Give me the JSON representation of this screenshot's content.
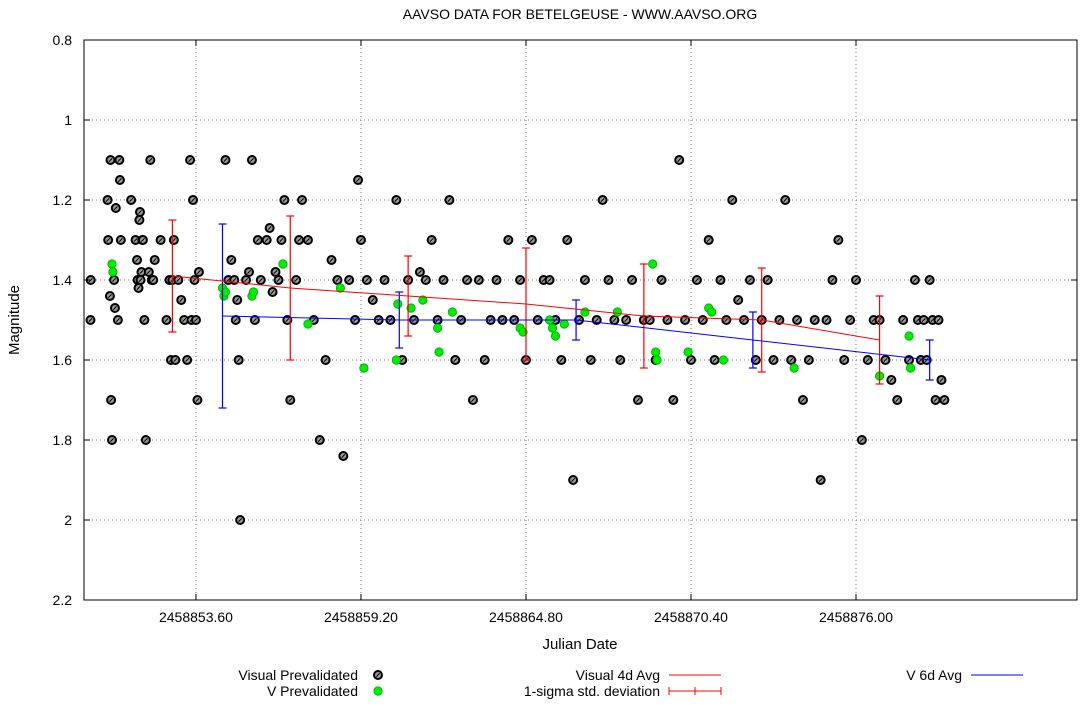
{
  "chart_data": {
    "type": "scatter",
    "title": "AAVSO DATA FOR BETELGEUSE - WWW.AAVSO.ORG",
    "xlabel": "Julian Date",
    "ylabel": "Magnitude",
    "xlim": [
      2458849.8,
      2458883.5
    ],
    "ylim": [
      0.8,
      2.2
    ],
    "y_inverted": true,
    "grid": true,
    "x_ticks": [
      2458853.6,
      2458859.2,
      2458864.8,
      2458870.4,
      2458876.0
    ],
    "x_tick_labels": [
      "2458853.60",
      "2458859.20",
      "2458864.80",
      "2458870.40",
      "2458876.00"
    ],
    "y_ticks": [
      0.8,
      1.0,
      1.2,
      1.4,
      1.6,
      1.8,
      2.0,
      2.2
    ],
    "y_tick_labels": [
      "0.8",
      "1",
      "1.2",
      "1.4",
      "1.6",
      "1.8",
      "2",
      "2.2"
    ],
    "legend_position": "bottom",
    "colors": {
      "visual": "#000000",
      "visual_fill": "#9a9a9a",
      "v_band": "#00ee00",
      "visual_avg": "#ff0000",
      "v_avg": "#0000ff",
      "grid": "#777777"
    },
    "series": [
      {
        "name": "Visual Prevalidated",
        "style": "circle-black",
        "x": [
          2458850.03,
          2458850.02,
          2458850.6,
          2458850.62,
          2458850.68,
          2458850.7,
          2458850.72,
          2458850.75,
          2458850.82,
          2458850.85,
          2458850.88,
          2458850.95,
          2458851.0,
          2458851.02,
          2458851.05,
          2458851.4,
          2458851.55,
          2458851.6,
          2458851.62,
          2458851.65,
          2458851.68,
          2458851.7,
          2458851.72,
          2458851.75,
          2458851.78,
          2458851.8,
          2458851.85,
          2458851.9,
          2458852.0,
          2458852.05,
          2458852.1,
          2458852.15,
          2458852.2,
          2458852.4,
          2458852.6,
          2458852.7,
          2458852.75,
          2458852.8,
          2458852.85,
          2458852.9,
          2458853.0,
          2458853.1,
          2458853.2,
          2458853.3,
          2458853.4,
          2458853.45,
          2458853.5,
          2458853.55,
          2458853.6,
          2458853.65,
          2458853.7,
          2458854.6,
          2458854.7,
          2458854.8,
          2458854.9,
          2458854.95,
          2458855.0,
          2458855.05,
          2458855.1,
          2458855.3,
          2458855.4,
          2458855.5,
          2458855.6,
          2458855.7,
          2458855.8,
          2458856.0,
          2458856.1,
          2458856.2,
          2458856.3,
          2458856.4,
          2458856.5,
          2458856.6,
          2458856.7,
          2458856.8,
          2458857.0,
          2458857.1,
          2458857.2,
          2458857.4,
          2458857.6,
          2458857.8,
          2458858.0,
          2458858.2,
          2458858.4,
          2458858.6,
          2458858.8,
          2458859.0,
          2458859.1,
          2458859.2,
          2458859.4,
          2458859.6,
          2458859.8,
          2458860.0,
          2458860.2,
          2458860.4,
          2458860.6,
          2458860.8,
          2458861.0,
          2458861.2,
          2458861.4,
          2458861.6,
          2458861.8,
          2458862.0,
          2458862.2,
          2458862.4,
          2458862.6,
          2458862.8,
          2458863.0,
          2458863.2,
          2458863.4,
          2458863.6,
          2458863.8,
          2458864.0,
          2458864.2,
          2458864.4,
          2458864.6,
          2458864.8,
          2458865.0,
          2458865.2,
          2458865.4,
          2458865.6,
          2458865.8,
          2458866.0,
          2458866.2,
          2458866.4,
          2458866.6,
          2458866.8,
          2458867.0,
          2458867.2,
          2458867.4,
          2458867.6,
          2458867.8,
          2458868.0,
          2458868.2,
          2458868.4,
          2458868.6,
          2458868.8,
          2458869.0,
          2458869.2,
          2458869.4,
          2458869.6,
          2458869.8,
          2458870.0,
          2458870.2,
          2458870.4,
          2458870.6,
          2458870.8,
          2458871.0,
          2458871.2,
          2458871.4,
          2458871.6,
          2458871.8,
          2458872.0,
          2458872.2,
          2458872.4,
          2458872.6,
          2458872.8,
          2458873.0,
          2458873.2,
          2458873.4,
          2458873.6,
          2458873.8,
          2458874.0,
          2458874.2,
          2458874.4,
          2458874.6,
          2458874.8,
          2458875.0,
          2458875.2,
          2458875.4,
          2458875.6,
          2458875.8,
          2458876.0,
          2458876.2,
          2458876.4,
          2458876.6,
          2458876.8,
          2458877.0,
          2458877.2,
          2458877.4,
          2458877.6,
          2458877.8,
          2458878.0,
          2458878.1,
          2458878.2,
          2458878.3,
          2458878.4,
          2458878.5,
          2458878.6,
          2458878.7,
          2458878.8,
          2458878.9,
          2458879.0
        ],
        "y": [
          1.4,
          1.5,
          1.2,
          1.3,
          1.44,
          1.1,
          1.7,
          1.8,
          1.4,
          1.47,
          1.22,
          1.5,
          1.1,
          1.15,
          1.3,
          1.2,
          1.3,
          1.35,
          1.4,
          1.42,
          1.25,
          1.23,
          1.4,
          1.38,
          1.3,
          1.3,
          1.5,
          1.8,
          1.38,
          1.1,
          1.4,
          1.4,
          1.35,
          1.3,
          1.5,
          1.4,
          1.6,
          1.4,
          1.3,
          1.6,
          1.4,
          1.45,
          1.5,
          1.6,
          1.1,
          1.5,
          1.2,
          1.4,
          1.5,
          1.7,
          1.38,
          1.1,
          1.4,
          1.35,
          1.4,
          1.5,
          1.45,
          1.6,
          2.0,
          1.4,
          1.38,
          1.1,
          1.5,
          1.3,
          1.4,
          1.3,
          1.27,
          1.43,
          1.38,
          1.4,
          1.3,
          1.2,
          1.5,
          1.7,
          1.4,
          1.3,
          1.2,
          1.3,
          1.5,
          1.8,
          1.6,
          1.35,
          1.4,
          1.84,
          1.4,
          1.5,
          1.15,
          1.3,
          1.4,
          1.45,
          1.5,
          1.4,
          1.5,
          1.2,
          1.6,
          1.4,
          1.5,
          1.38,
          1.4,
          1.3,
          1.5,
          1.4,
          1.2,
          1.6,
          1.5,
          1.4,
          1.7,
          1.4,
          1.6,
          1.5,
          1.4,
          1.5,
          1.3,
          1.5,
          1.4,
          1.6,
          1.3,
          1.5,
          1.4,
          1.4,
          1.5,
          1.6,
          1.3,
          1.9,
          1.5,
          1.4,
          1.6,
          1.5,
          1.2,
          1.4,
          1.5,
          1.6,
          1.5,
          1.4,
          1.7,
          1.5,
          1.5,
          1.6,
          1.4,
          1.5,
          1.7,
          1.1,
          1.5,
          1.6,
          1.4,
          1.5,
          1.3,
          1.6,
          1.4,
          1.5,
          1.2,
          1.45,
          1.5,
          1.4,
          1.6,
          1.5,
          1.4,
          1.6,
          1.5,
          1.2,
          1.6,
          1.5,
          1.7,
          1.6,
          1.5,
          1.9,
          1.5,
          1.4,
          1.3,
          1.6,
          1.5,
          1.4,
          1.8,
          1.6,
          1.5,
          1.5,
          1.6,
          1.65,
          1.7,
          1.5,
          1.6,
          1.4,
          1.5,
          1.6,
          1.5,
          1.6,
          1.4,
          1.5,
          1.7,
          1.5,
          1.65,
          1.7
        ]
      },
      {
        "name": "V Prevalidated",
        "style": "circle-green",
        "x": [
          2458850.75,
          2458850.78,
          2458854.5,
          2458854.55,
          2458854.6,
          2458855.5,
          2458855.55,
          2458856.55,
          2458857.4,
          2458858.5,
          2458859.3,
          2458860.4,
          2458860.45,
          2458860.9,
          2458861.3,
          2458861.8,
          2458861.85,
          2458862.3,
          2458864.6,
          2458864.7,
          2458865.6,
          2458865.7,
          2458865.8,
          2458866.1,
          2458866.8,
          2458867.9,
          2458869.1,
          2458869.2,
          2458869.25,
          2458870.3,
          2458871.0,
          2458871.1,
          2458871.5,
          2458873.9,
          2458876.8,
          2458877.8,
          2458877.85
        ],
        "y": [
          1.36,
          1.38,
          1.42,
          1.44,
          1.43,
          1.44,
          1.43,
          1.36,
          1.51,
          1.42,
          1.62,
          1.6,
          1.46,
          1.47,
          1.45,
          1.52,
          1.58,
          1.48,
          1.52,
          1.53,
          1.5,
          1.52,
          1.54,
          1.51,
          1.48,
          1.48,
          1.36,
          1.58,
          1.6,
          1.58,
          1.47,
          1.48,
          1.6,
          1.62,
          1.64,
          1.54,
          1.62
        ]
      },
      {
        "name": "Visual 4d Avg",
        "style": "line-red",
        "x": [
          2458852.8,
          2458856.8,
          2458860.8,
          2458864.8,
          2458868.8,
          2458872.8,
          2458876.8
        ],
        "y": [
          1.39,
          1.42,
          1.44,
          1.46,
          1.49,
          1.5,
          1.55
        ],
        "sigma": [
          0.14,
          0.18,
          0.1,
          0.14,
          0.13,
          0.13,
          0.11
        ]
      },
      {
        "name": "V 6d Avg",
        "style": "line-blue",
        "x": [
          2458854.5,
          2458860.5,
          2458866.5,
          2458872.5,
          2458878.5
        ],
        "y": [
          1.49,
          1.5,
          1.5,
          1.55,
          1.6
        ],
        "sigma": [
          0.23,
          0.07,
          0.05,
          0.07,
          0.05
        ]
      }
    ],
    "legend": [
      {
        "label": "Visual Prevalidated",
        "kind": "visual"
      },
      {
        "label": "V Prevalidated",
        "kind": "v"
      },
      {
        "label": "Visual 4d Avg",
        "kind": "red-line"
      },
      {
        "label": "1-sigma std. deviation",
        "kind": "red-err"
      },
      {
        "label": "V 6d Avg",
        "kind": "blue-line"
      }
    ]
  }
}
